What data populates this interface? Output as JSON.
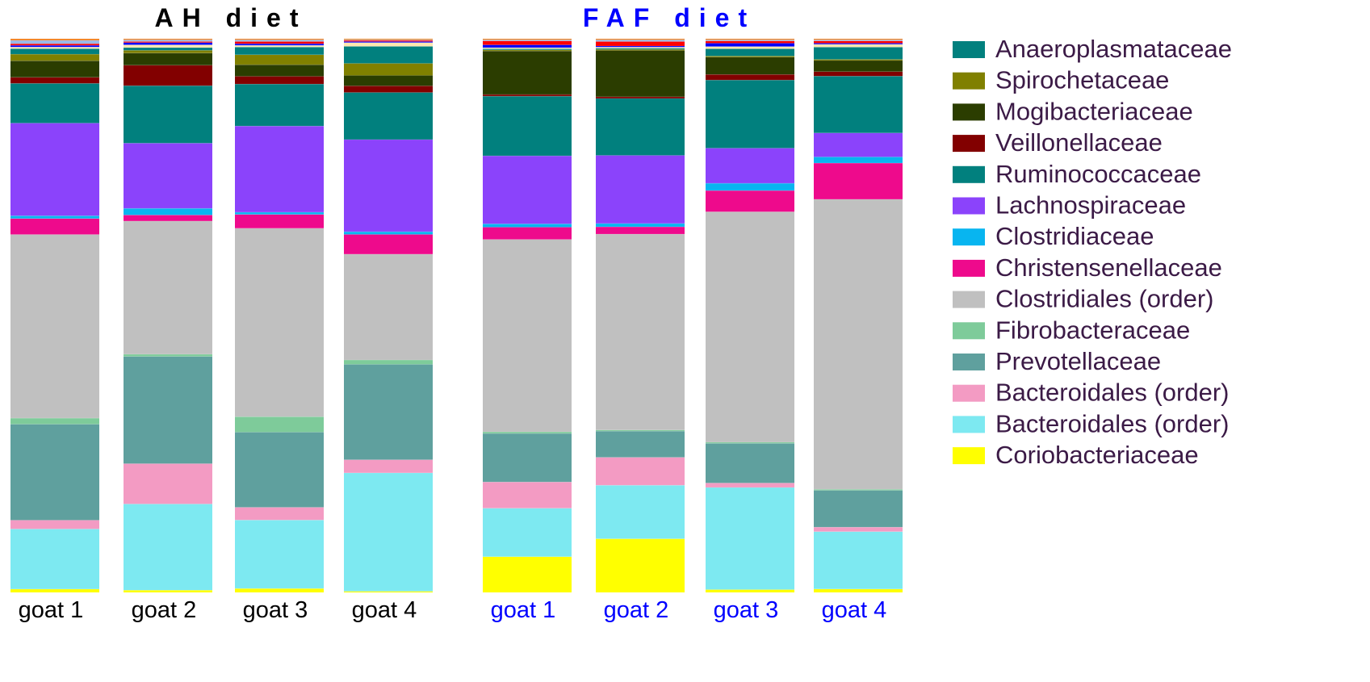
{
  "chart_data": {
    "type": "bar",
    "stacked": true,
    "groups": [
      {
        "title": "AH diet",
        "title_color": "#000000",
        "categories": [
          "goat 1",
          "goat 2",
          "goat 3",
          "goat 4"
        ],
        "label_color": "#000000"
      },
      {
        "title": "FAF diet",
        "title_color": "#0000ff",
        "categories": [
          "goat 1",
          "goat 2",
          "goat 3",
          "goat 4"
        ],
        "label_color": "#0000ff"
      }
    ],
    "series": [
      {
        "name": "Coriobacteriaceae",
        "color": "#ffff00",
        "values": [
          0.6,
          0.4,
          0.7,
          0.2,
          6.4,
          9.6,
          0.5,
          0.6
        ]
      },
      {
        "name": "Bacteroidales (order)",
        "color": "#7de9f1",
        "values": [
          10.9,
          15.6,
          12.4,
          21.6,
          8.7,
          9.6,
          18.3,
          10.3
        ]
      },
      {
        "name": "Bacteroidales (order)",
        "color": "#f39bc3",
        "values": [
          1.6,
          7.3,
          2.3,
          2.4,
          4.7,
          5.0,
          0.8,
          0.8
        ]
      },
      {
        "name": "Prevotellaceae",
        "color": "#5fa09e",
        "values": [
          17.4,
          19.4,
          13.6,
          17.4,
          8.7,
          4.7,
          7.1,
          6.6
        ]
      },
      {
        "name": "Fibrobacteraceae",
        "color": "#7ecb9a",
        "values": [
          1.1,
          0.4,
          2.8,
          0.8,
          0.3,
          0.2,
          0.2,
          0.2
        ]
      },
      {
        "name": "Clostridiales (order)",
        "color": "#c0c0c0",
        "values": [
          33.3,
          24.1,
          34.1,
          19.3,
          34.5,
          35.1,
          41.3,
          52.0
        ]
      },
      {
        "name": "Christensenellaceae",
        "color": "#ee0a8c",
        "values": [
          2.9,
          1.1,
          2.5,
          3.6,
          2.2,
          1.3,
          3.8,
          6.5
        ]
      },
      {
        "name": "Clostridiaceae",
        "color": "#08b5f0",
        "values": [
          0.5,
          1.2,
          0.4,
          0.5,
          0.6,
          0.6,
          1.3,
          1.1
        ]
      },
      {
        "name": "Lachnospiraceae",
        "color": "#8b43fb",
        "values": [
          16.8,
          11.8,
          15.6,
          16.8,
          12.2,
          12.2,
          6.3,
          4.3
        ]
      },
      {
        "name": "Ruminococcaceae",
        "color": "#01807e",
        "values": [
          7.2,
          10.4,
          7.6,
          8.6,
          10.7,
          10.2,
          12.2,
          10.2
        ]
      },
      {
        "name": "Veillonellaceae",
        "color": "#820000",
        "values": [
          1.1,
          3.7,
          1.4,
          1.2,
          0.3,
          0.3,
          1.0,
          0.8
        ]
      },
      {
        "name": "Mogibacteriaceae",
        "color": "#2b3d00",
        "values": [
          3.0,
          2.2,
          2.1,
          1.9,
          7.8,
          8.3,
          3.1,
          2.0
        ]
      },
      {
        "name": "Spirochetaceae",
        "color": "#808000",
        "values": [
          1.2,
          0.5,
          1.8,
          2.2,
          0.2,
          0.2,
          0.2,
          0.2
        ]
      },
      {
        "name": "Anaeroplasmataceae",
        "color": "#01807e",
        "values": [
          1.0,
          0.5,
          1.4,
          3.1,
          0.2,
          0.2,
          1.3,
          2.2
        ]
      },
      {
        "name": "",
        "color": "#ffe7b0",
        "values": [
          0.3,
          0.5,
          0.3,
          0.7,
          0.2,
          0.2,
          0.4,
          0.5
        ]
      },
      {
        "name": "",
        "color": "#0000ff",
        "values": [
          0.3,
          0.4,
          0.3,
          0.2,
          0.5,
          0.2,
          0.6,
          0.2
        ]
      },
      {
        "name": "",
        "color": "#ff0000",
        "values": [
          0.3,
          0.2,
          0.4,
          0.2,
          0.7,
          0.8,
          0.4,
          0.4
        ]
      },
      {
        "name": "",
        "color": "#9ab7e6",
        "values": [
          0.6,
          0.3,
          0.3,
          0.1,
          0.2,
          0.3,
          0.2,
          0.2
        ]
      },
      {
        "name": "",
        "color": "#f08020",
        "values": [
          0.3,
          0.2,
          0.2,
          0.2,
          0.2,
          0.2,
          0.2,
          0.2
        ]
      }
    ],
    "legend": {
      "placement": "right",
      "entries": [
        {
          "label": "Anaeroplasmataceae",
          "color": "#01807e"
        },
        {
          "label": "Spirochetaceae",
          "color": "#808000"
        },
        {
          "label": "Mogibacteriaceae",
          "color": "#2b3d00"
        },
        {
          "label": "Veillonellaceae",
          "color": "#820000"
        },
        {
          "label": "Ruminococcaceae",
          "color": "#01807e"
        },
        {
          "label": "Lachnospiraceae",
          "color": "#8b43fb"
        },
        {
          "label": "Clostridiaceae",
          "color": "#08b5f0"
        },
        {
          "label": "Christensenellaceae",
          "color": "#ee0a8c"
        },
        {
          "label": "Clostridiales (order)",
          "color": "#c0c0c0"
        },
        {
          "label": "Fibrobacteraceae",
          "color": "#7ecb9a"
        },
        {
          "label": "Prevotellaceae",
          "color": "#5fa09e"
        },
        {
          "label": "Bacteroidales (order)",
          "color": "#f39bc3"
        },
        {
          "label": "Bacteroidales (order)",
          "color": "#7de9f1"
        },
        {
          "label": "Coriobacteriaceae",
          "color": "#ffff00"
        }
      ]
    },
    "ylim": [
      0,
      100
    ],
    "grid": false
  }
}
